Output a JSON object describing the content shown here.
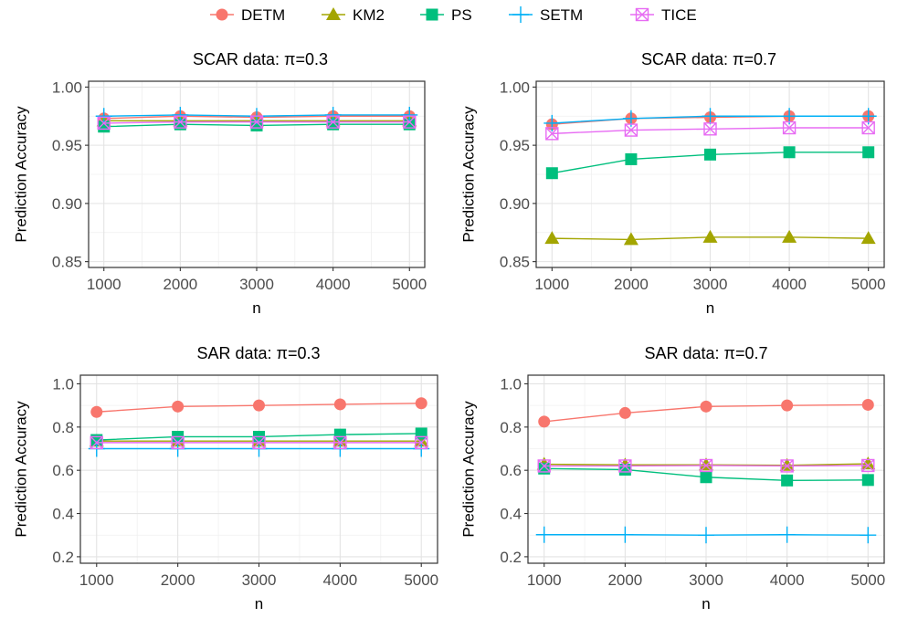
{
  "legend": [
    {
      "name": "DETM",
      "color": "#F8766D",
      "shape": "circle"
    },
    {
      "name": "KM2",
      "color": "#A3A500",
      "shape": "triangle"
    },
    {
      "name": "PS",
      "color": "#00BF7D",
      "shape": "square"
    },
    {
      "name": "SETM",
      "color": "#00B0F6",
      "shape": "plus"
    },
    {
      "name": "TICE",
      "color": "#E76BF3",
      "shape": "boxcross"
    }
  ],
  "chart_data": [
    {
      "type": "line",
      "title": "SCAR data: π=0.3",
      "xlabel": "n",
      "ylabel": "Prediction Accuracy",
      "x": [
        1000,
        2000,
        3000,
        4000,
        5000
      ],
      "x_ticks": [
        1000,
        2000,
        3000,
        4000,
        5000
      ],
      "y_ticks": [
        0.85,
        0.9,
        0.95,
        1.0
      ],
      "y_tick_labels": [
        "0.85",
        "0.90",
        "0.95",
        "1.00"
      ],
      "xlim": [
        1000,
        5000
      ],
      "ylim": [
        0.845,
        1.005
      ],
      "grid": true,
      "series": [
        {
          "name": "DETM",
          "values": [
            0.973,
            0.975,
            0.974,
            0.975,
            0.975
          ]
        },
        {
          "name": "KM2",
          "values": [
            0.971,
            0.971,
            0.971,
            0.971,
            0.971
          ]
        },
        {
          "name": "PS",
          "values": [
            0.966,
            0.968,
            0.967,
            0.968,
            0.968
          ]
        },
        {
          "name": "SETM",
          "values": [
            0.975,
            0.976,
            0.975,
            0.976,
            0.976
          ]
        },
        {
          "name": "TICE",
          "values": [
            0.969,
            0.97,
            0.97,
            0.97,
            0.97
          ]
        }
      ]
    },
    {
      "type": "line",
      "title": "SCAR data: π=0.7",
      "xlabel": "n",
      "ylabel": "Prediction Accuracy",
      "x": [
        1000,
        2000,
        3000,
        4000,
        5000
      ],
      "x_ticks": [
        1000,
        2000,
        3000,
        4000,
        5000
      ],
      "y_ticks": [
        0.85,
        0.9,
        0.95,
        1.0
      ],
      "y_tick_labels": [
        "0.85",
        "0.90",
        "0.95",
        "1.00"
      ],
      "xlim": [
        1000,
        5000
      ],
      "ylim": [
        0.845,
        1.005
      ],
      "grid": true,
      "series": [
        {
          "name": "DETM",
          "values": [
            0.968,
            0.973,
            0.974,
            0.975,
            0.975
          ]
        },
        {
          "name": "KM2",
          "values": [
            0.87,
            0.869,
            0.871,
            0.871,
            0.87
          ]
        },
        {
          "name": "PS",
          "values": [
            0.926,
            0.938,
            0.942,
            0.944,
            0.944
          ]
        },
        {
          "name": "SETM",
          "values": [
            0.969,
            0.973,
            0.975,
            0.975,
            0.975
          ]
        },
        {
          "name": "TICE",
          "values": [
            0.96,
            0.963,
            0.964,
            0.965,
            0.965
          ]
        }
      ]
    },
    {
      "type": "line",
      "title": "SAR data: π=0.3",
      "xlabel": "n",
      "ylabel": "Prediction Accuracy",
      "x": [
        1000,
        2000,
        3000,
        4000,
        5000
      ],
      "x_ticks": [
        1000,
        2000,
        3000,
        4000,
        5000
      ],
      "y_ticks": [
        0.2,
        0.4,
        0.6,
        0.8,
        1.0
      ],
      "y_tick_labels": [
        "0.2",
        "0.4",
        "0.6",
        "0.8",
        "1.0"
      ],
      "xlim": [
        1000,
        5000
      ],
      "ylim": [
        0.17,
        1.04
      ],
      "grid": true,
      "series": [
        {
          "name": "DETM",
          "values": [
            0.87,
            0.895,
            0.9,
            0.905,
            0.91
          ]
        },
        {
          "name": "KM2",
          "values": [
            0.735,
            0.735,
            0.735,
            0.735,
            0.735
          ]
        },
        {
          "name": "PS",
          "values": [
            0.74,
            0.755,
            0.755,
            0.765,
            0.77
          ]
        },
        {
          "name": "SETM",
          "values": [
            0.7,
            0.7,
            0.7,
            0.7,
            0.7
          ]
        },
        {
          "name": "TICE",
          "values": [
            0.728,
            0.728,
            0.728,
            0.728,
            0.728
          ]
        }
      ]
    },
    {
      "type": "line",
      "title": "SAR data: π=0.7",
      "xlabel": "n",
      "ylabel": "Prediction Accuracy",
      "x": [
        1000,
        2000,
        3000,
        4000,
        5000
      ],
      "x_ticks": [
        1000,
        2000,
        3000,
        4000,
        5000
      ],
      "y_ticks": [
        0.2,
        0.4,
        0.6,
        0.8,
        1.0
      ],
      "y_tick_labels": [
        "0.2",
        "0.4",
        "0.6",
        "0.8",
        "1.0"
      ],
      "xlim": [
        1000,
        5000
      ],
      "ylim": [
        0.17,
        1.04
      ],
      "grid": true,
      "series": [
        {
          "name": "DETM",
          "values": [
            0.825,
            0.865,
            0.895,
            0.9,
            0.903
          ]
        },
        {
          "name": "KM2",
          "values": [
            0.628,
            0.625,
            0.625,
            0.623,
            0.63
          ]
        },
        {
          "name": "PS",
          "values": [
            0.608,
            0.603,
            0.568,
            0.553,
            0.555
          ]
        },
        {
          "name": "SETM",
          "values": [
            0.302,
            0.302,
            0.3,
            0.302,
            0.3
          ]
        },
        {
          "name": "TICE",
          "values": [
            0.62,
            0.62,
            0.622,
            0.62,
            0.622
          ]
        }
      ]
    }
  ]
}
